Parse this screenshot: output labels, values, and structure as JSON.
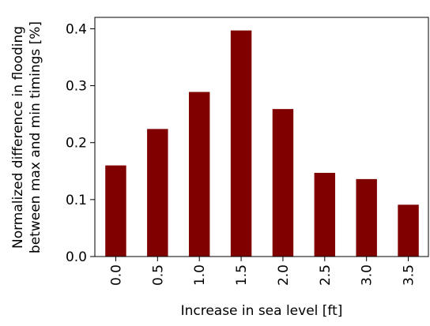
{
  "chart_data": {
    "type": "bar",
    "xlabel": "Increase in sea level [ft]",
    "ylabel": [
      "Normalized difference in flooding",
      "between max and min timings [%]"
    ],
    "categories": [
      "0.0",
      "0.5",
      "1.0",
      "1.5",
      "2.0",
      "2.5",
      "3.0",
      "3.5"
    ],
    "values": [
      0.16,
      0.224,
      0.289,
      0.397,
      0.259,
      0.147,
      0.136,
      0.091
    ],
    "color": "#800000",
    "ylim": [
      0,
      0.42
    ],
    "yticks": [
      {
        "value": 0,
        "label": "0.0"
      },
      0.1,
      0.2,
      0.3,
      0.4
    ]
  }
}
